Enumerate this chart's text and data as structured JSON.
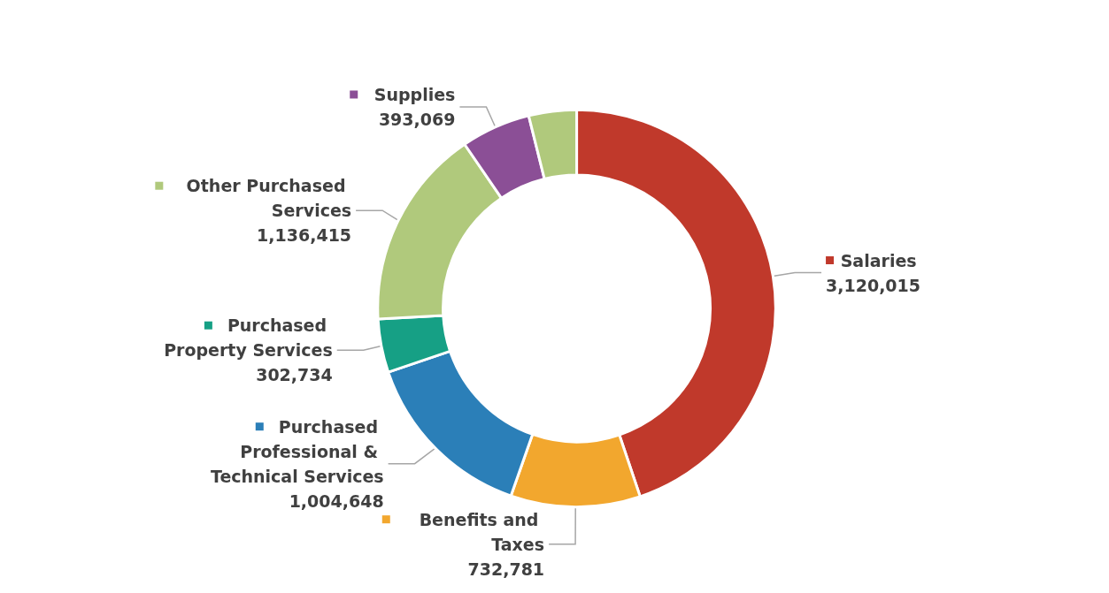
{
  "chart_data": {
    "type": "donut",
    "categories": [
      "Salaries",
      "Benefits and Taxes",
      "Purchased Professional & Technical Services",
      "Purchased Property Services",
      "Other Purchased Services",
      "Supplies",
      null
    ],
    "values": [
      3120015,
      732781,
      1004648,
      302734,
      1136415,
      393069,
      270000
    ],
    "colors": [
      "#c0392b",
      "#f2a72e",
      "#2b7fb8",
      "#16a085",
      "#b0c97c",
      "#8b4f96",
      "#b0c97c"
    ],
    "legend": "bottom left",
    "value_labels": [
      "3,120,015",
      "732,781",
      "1,004,648",
      "302,734",
      "1,136,415",
      "393,069",
      null
    ]
  }
}
